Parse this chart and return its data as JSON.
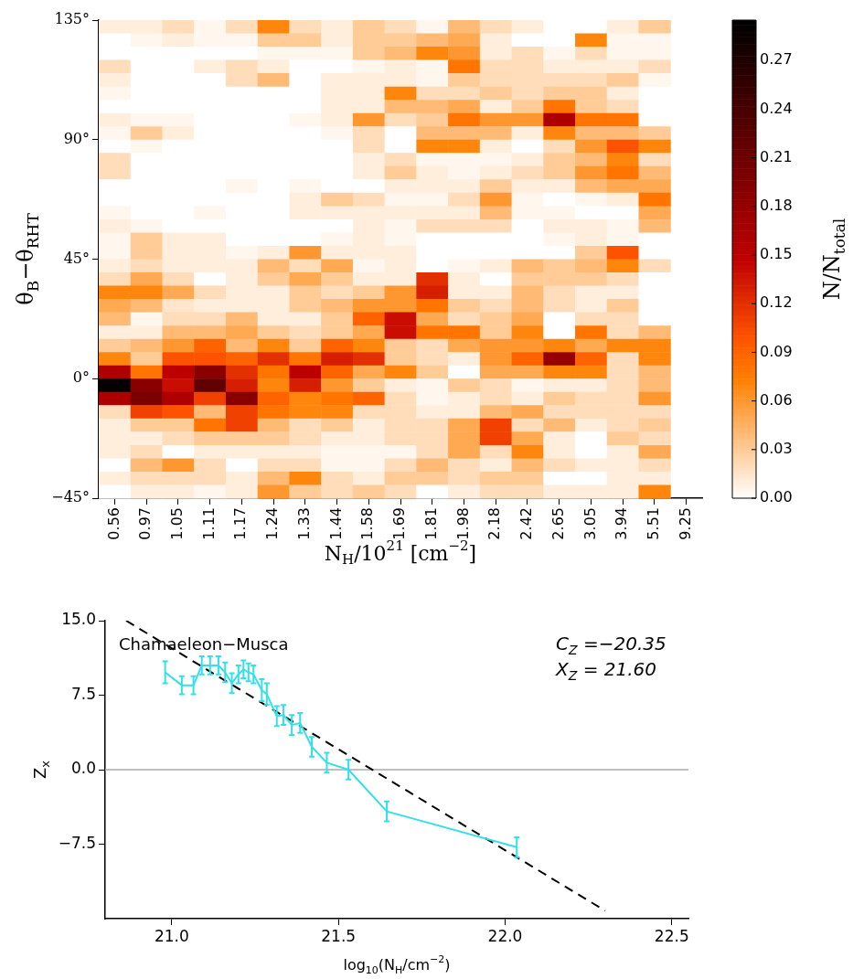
{
  "chart_data": [
    {
      "type": "heatmap",
      "xlabel": "N$_{H}$/10$^{21}$ [cm$^{−2}$]",
      "ylabel": "θ$_{B}$−θ$_{RHT}$",
      "clabel": "N/N$_{total}$",
      "categories": [
        "0.56",
        "0.97",
        "1.05",
        "1.11",
        "1.17",
        "1.24",
        "1.33",
        "1.44",
        "1.58",
        "1.69",
        "1.81",
        "1.98",
        "2.18",
        "2.42",
        "2.65",
        "3.05",
        "3.94",
        "5.51",
        "9.25"
      ],
      "ylim": [
        -45,
        135
      ],
      "yticks": [
        {
          "value": -45,
          "label": "−45°"
        },
        {
          "value": 0,
          "label": "0°"
        },
        {
          "value": 45,
          "label": "45°"
        },
        {
          "value": 90,
          "label": "90°"
        },
        {
          "value": 135,
          "label": "135°"
        }
      ],
      "clim": [
        0,
        0.295
      ],
      "cticks": [
        {
          "value": 0,
          "label": "0.00"
        },
        {
          "value": 0.03,
          "label": "0.03"
        },
        {
          "value": 0.06,
          "label": "0.06"
        },
        {
          "value": 0.09,
          "label": "0.09"
        },
        {
          "value": 0.12,
          "label": "0.12"
        },
        {
          "value": 0.15,
          "label": "0.15"
        },
        {
          "value": 0.18,
          "label": "0.18"
        },
        {
          "value": 0.21,
          "label": "0.21"
        },
        {
          "value": 0.24,
          "label": "0.24"
        },
        {
          "value": 0.27,
          "label": "0.27"
        }
      ],
      "cells": [
        [
          0.01,
          0.01,
          0.02,
          0.005,
          0.02,
          0.07,
          0.02,
          0.01,
          0.03,
          0.02,
          0.005,
          0.04,
          0.02,
          0.01,
          0,
          0,
          0.01,
          0.03,
          null
        ],
        [
          0,
          0.005,
          0.01,
          0.005,
          0.005,
          0.03,
          0.03,
          0.01,
          0.03,
          0.03,
          0.04,
          0.05,
          0.01,
          0,
          0,
          0.07,
          0.005,
          0.005,
          null
        ],
        [
          0,
          0,
          0,
          0,
          0,
          0.005,
          0.005,
          0.005,
          0.03,
          0.04,
          0.07,
          0.06,
          0.01,
          0.02,
          0.005,
          0.02,
          0.005,
          0.005,
          null
        ],
        [
          0.02,
          0,
          0,
          0.01,
          0.02,
          0.01,
          0,
          0,
          0.005,
          0.01,
          0.005,
          0.08,
          0.02,
          0.02,
          0.01,
          0.01,
          0.01,
          0.02,
          null
        ],
        [
          0.01,
          0,
          0,
          0,
          0.02,
          0.04,
          0,
          0.01,
          0.01,
          0.01,
          0.005,
          0.03,
          0.02,
          0.02,
          0.02,
          0.02,
          0.03,
          0.005,
          null
        ],
        [
          0.005,
          0,
          0,
          0,
          0,
          0,
          0,
          0.01,
          0.01,
          0.07,
          0.02,
          0.02,
          0.03,
          0.02,
          0.03,
          0.03,
          0.01,
          0,
          null
        ],
        [
          0,
          0,
          0,
          0,
          0,
          0,
          0,
          0.01,
          0.01,
          0.04,
          0.04,
          0.05,
          0.01,
          0.03,
          0.08,
          0.03,
          0.02,
          0,
          null
        ],
        [
          0.01,
          0.005,
          0.005,
          0,
          0,
          0,
          0.005,
          0.01,
          0.06,
          0.02,
          0.03,
          0.08,
          0.06,
          0.06,
          0.16,
          0.08,
          0.08,
          0,
          null
        ],
        [
          0.005,
          0.03,
          0.01,
          0,
          0,
          0,
          0,
          0.005,
          0.02,
          0,
          0.04,
          0.04,
          0.04,
          0.01,
          0.07,
          0.04,
          0.04,
          0.03,
          null
        ],
        [
          0,
          0.005,
          0,
          0,
          0,
          0,
          0,
          0,
          0.02,
          0,
          0.07,
          0.07,
          0.01,
          0,
          0.02,
          0.06,
          0.1,
          0.07,
          null
        ],
        [
          0.02,
          0,
          0,
          0,
          0,
          0,
          0,
          0,
          0.01,
          0.02,
          0.005,
          0.005,
          0.005,
          0.01,
          0.03,
          0.04,
          0.07,
          0.02,
          null
        ],
        [
          0.02,
          0,
          0,
          0,
          0,
          0,
          0,
          0,
          0.01,
          0.03,
          0.01,
          0.005,
          0.01,
          0.02,
          0.03,
          0.06,
          0.08,
          0.04,
          null
        ],
        [
          0,
          0,
          0,
          0,
          0.005,
          0,
          0.005,
          0,
          0,
          0.01,
          0.01,
          0.01,
          0.03,
          0.01,
          0.01,
          0.04,
          0.05,
          0.05,
          null
        ],
        [
          0,
          0,
          0,
          0,
          0,
          0,
          0.01,
          0.03,
          0.02,
          0.005,
          0.005,
          0.02,
          0.06,
          0.005,
          0,
          0.005,
          0.01,
          0.08,
          null
        ],
        [
          0.005,
          0,
          0,
          0.005,
          0,
          0,
          0.01,
          0.01,
          0.01,
          0.01,
          0.01,
          0.01,
          0.04,
          0.005,
          0.005,
          0,
          0,
          0.05,
          null
        ],
        [
          0.01,
          0.005,
          0,
          0,
          0,
          0,
          0,
          0,
          0.01,
          0.005,
          0.02,
          0.02,
          0.02,
          0,
          0.01,
          0.01,
          0.005,
          0.04,
          null
        ],
        [
          0.005,
          0.03,
          0.01,
          0.01,
          0,
          0,
          0,
          0.005,
          0.01,
          0.005,
          0,
          0,
          0,
          0,
          0.005,
          0.01,
          0.005,
          0,
          null
        ],
        [
          0.005,
          0.03,
          0.01,
          0.01,
          0.005,
          0.01,
          0.06,
          0.01,
          0.01,
          0.01,
          0,
          0,
          0,
          0,
          0,
          0.03,
          0.1,
          0,
          null
        ],
        [
          0.01,
          0.02,
          0.01,
          0.01,
          0.01,
          0.04,
          0.02,
          0.05,
          0.005,
          0.01,
          0,
          0.005,
          0.01,
          0.04,
          0.03,
          0.04,
          0.07,
          0.02,
          null
        ],
        [
          0.02,
          0.05,
          0.02,
          0,
          0.01,
          0.03,
          0.05,
          0.03,
          0.01,
          0.01,
          0.12,
          0.01,
          0,
          0.03,
          0.03,
          0.03,
          0.02,
          0,
          null
        ],
        [
          0.07,
          0.07,
          0.05,
          0.02,
          0.01,
          0.01,
          0.03,
          0.02,
          0.03,
          0.06,
          0.13,
          0.01,
          0.01,
          0.04,
          0.02,
          0.01,
          0.01,
          0,
          null
        ],
        [
          0.05,
          0.04,
          0.015,
          0.01,
          0.01,
          0.01,
          0.03,
          0.04,
          0.06,
          0.06,
          0.08,
          0.03,
          0.02,
          0.04,
          0.02,
          0.01,
          0.03,
          0,
          null
        ],
        [
          0.04,
          0.005,
          0.02,
          0.02,
          0.04,
          0.01,
          0.01,
          0.03,
          0.09,
          0.14,
          0.05,
          0.02,
          0.03,
          0.05,
          0,
          0.02,
          0.02,
          0,
          null
        ],
        [
          0.01,
          0.01,
          0.04,
          0.04,
          0.05,
          0.03,
          0.02,
          0.03,
          0.05,
          0.14,
          0.08,
          0.08,
          0.03,
          0.07,
          0,
          0.08,
          0.02,
          0.04,
          null
        ],
        [
          0.03,
          0.04,
          0.06,
          0.09,
          0.04,
          0.07,
          0.03,
          0.09,
          0.07,
          0.03,
          0.02,
          0.05,
          0.06,
          0.06,
          0.07,
          0.05,
          0.07,
          0.07,
          null
        ],
        [
          0.07,
          0.03,
          0.1,
          0.1,
          0.09,
          0.12,
          0.08,
          0.13,
          0.12,
          0.03,
          0.02,
          0.01,
          0.06,
          0.09,
          0.18,
          0.09,
          0.02,
          0.07,
          null
        ],
        [
          0.16,
          0.08,
          0.15,
          0.19,
          0.12,
          0.08,
          0.15,
          0.09,
          0.05,
          0.07,
          0.03,
          0,
          0.05,
          0.05,
          0.07,
          0.07,
          0.02,
          0.04,
          null
        ],
        [
          0.29,
          0.19,
          0.14,
          0.22,
          0.13,
          0.07,
          0.13,
          0.06,
          0.03,
          0.01,
          0.005,
          0.03,
          0.02,
          0.005,
          0.01,
          0.01,
          0.02,
          0.04,
          null
        ],
        [
          0.16,
          0.2,
          0.16,
          0.11,
          0.19,
          0.09,
          0.07,
          0.08,
          0.09,
          0.02,
          0.005,
          0.01,
          0.02,
          0.01,
          0.03,
          0.02,
          0.02,
          0.06,
          null
        ],
        [
          0.02,
          0.11,
          0.1,
          0.04,
          0.11,
          0.08,
          0.07,
          0.07,
          0.02,
          0.02,
          0.01,
          0.01,
          0.04,
          0.05,
          0.02,
          0.02,
          0.02,
          0.02,
          null
        ],
        [
          0.01,
          0.03,
          0.03,
          0.08,
          0.11,
          0.04,
          0.02,
          0.03,
          0.01,
          0.02,
          0.02,
          0.05,
          0.11,
          0.02,
          0.04,
          0.01,
          0.02,
          0.03,
          null
        ],
        [
          0.01,
          0.01,
          0.02,
          0.03,
          0.03,
          0.03,
          0.02,
          0.01,
          0.01,
          0.02,
          0.02,
          0.05,
          0.11,
          0.05,
          0.01,
          0,
          0.03,
          0.02,
          null
        ],
        [
          0.01,
          0.02,
          0,
          0.01,
          0.01,
          0.01,
          0.01,
          0.005,
          0.005,
          0.005,
          0.02,
          0.05,
          0.02,
          0.07,
          0.01,
          0,
          0.01,
          0.05,
          null
        ],
        [
          0,
          0.04,
          0.06,
          0.02,
          0,
          0.02,
          0.02,
          0.005,
          0.005,
          0.02,
          0.04,
          0.02,
          0.01,
          0.04,
          0.02,
          0.01,
          0.01,
          0.02,
          null
        ],
        [
          0.01,
          0.02,
          0.02,
          0.02,
          0.01,
          0.04,
          0.07,
          0.02,
          0.01,
          0.03,
          0.03,
          0.02,
          0.03,
          0.03,
          0,
          0,
          0.01,
          0.01,
          null
        ],
        [
          0,
          0.01,
          0.01,
          0.005,
          0.01,
          0.06,
          0.03,
          0.02,
          0.03,
          0.02,
          0,
          0.01,
          0.02,
          0.02,
          0.01,
          0.01,
          0.01,
          0.07,
          null
        ]
      ]
    },
    {
      "type": "line",
      "xlabel": "log$_{10}$(N$_{H}$/cm$^{−2}$)",
      "ylabel": "Z$_{x}$",
      "xlim": [
        20.8,
        22.55
      ],
      "xticks": [
        {
          "value": 21,
          "label": "21.0"
        },
        21.5,
        {
          "value": 22,
          "label": "22.0"
        },
        22.5
      ],
      "ylim": [
        -15,
        15
      ],
      "yticks": [
        {
          "value": -7.5,
          "label": "−7.5"
        },
        {
          "value": 0,
          "label": "0.0"
        },
        7.5,
        {
          "value": 15,
          "label": "15.0"
        }
      ],
      "marker": "none",
      "ref_lines": [
        {
          "axis": "y",
          "value": 0,
          "color": "#aaaaaa"
        }
      ],
      "annotations": [
        "Chamaeleon−Musca",
        "C$_{Z}$ =−20.35",
        "X$_{Z}$ = 21.60"
      ],
      "series": [
        {
          "color": "#33e0e8",
          "x": [
            20.98,
            21.03,
            21.065,
            21.09,
            21.115,
            21.14,
            21.16,
            21.18,
            21.2,
            21.215,
            21.23,
            21.245,
            21.27,
            21.285,
            21.315,
            21.335,
            21.36,
            21.385,
            21.42,
            21.465,
            21.53,
            21.645,
            22.035
          ],
          "values": [
            9.8,
            8.5,
            8.5,
            10.5,
            10.5,
            10.5,
            9.8,
            8.7,
            9.6,
            10.1,
            9.8,
            9.6,
            8.0,
            7.6,
            5.4,
            5.5,
            4.5,
            4.7,
            2.3,
            0.7,
            0.0,
            -4.2,
            -7.8
          ],
          "errors": [
            1.1,
            0.9,
            0.9,
            0.9,
            0.9,
            0.9,
            1.0,
            1.0,
            0.9,
            0.9,
            0.9,
            0.9,
            1.1,
            1.1,
            1.0,
            1.0,
            1.0,
            1.0,
            1.0,
            1.0,
            1.0,
            1.0,
            1.0
          ]
        },
        {
          "type": "line",
          "color": "#000000",
          "line_style": "dashed",
          "x": [
            20.863,
            22.3
          ],
          "values": [
            15.0,
            -14.2
          ]
        }
      ]
    }
  ]
}
